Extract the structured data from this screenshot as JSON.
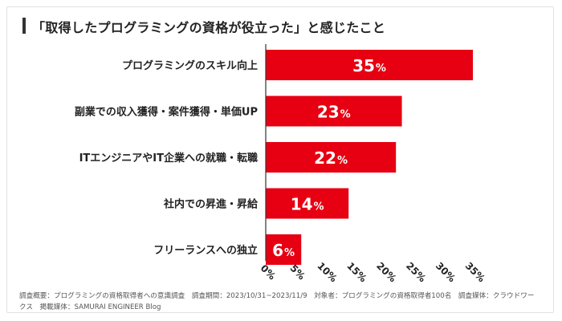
{
  "title": "「取得したプログラミングの資格が役立った」と感じたこと",
  "footnote": "調査概要：プログラミングの資格取得者への意識調査　調査期間：2023/10/31~2023/11/9　対象者：プログラミングの資格取得者100名　調査媒体：クラウドワークス　掲載媒体：SAMURAI ENGINEER Blog",
  "colors": {
    "bar": "#e60012",
    "title_bar": "#333333",
    "axis": "#333333"
  },
  "chart_data": {
    "type": "bar",
    "orientation": "horizontal",
    "title": "「取得したプログラミングの資格が役立った」と感じたこと",
    "categories": [
      "プログラミングのスキル向上",
      "副業での収入獲得・案件獲得・単価UP",
      "ITエンジニアやIT企業への就職・転職",
      "社内での昇進・昇給",
      "フリーランスへの独立"
    ],
    "values": [
      35,
      23,
      22,
      14,
      6
    ],
    "value_suffix": "%",
    "xlim": [
      0,
      35
    ],
    "xticks": [
      "0%",
      "5%",
      "10%",
      "15%",
      "20%",
      "25%",
      "30%",
      "35%"
    ],
    "xlabel": "",
    "ylabel": "",
    "grid": false,
    "legend": "none"
  }
}
